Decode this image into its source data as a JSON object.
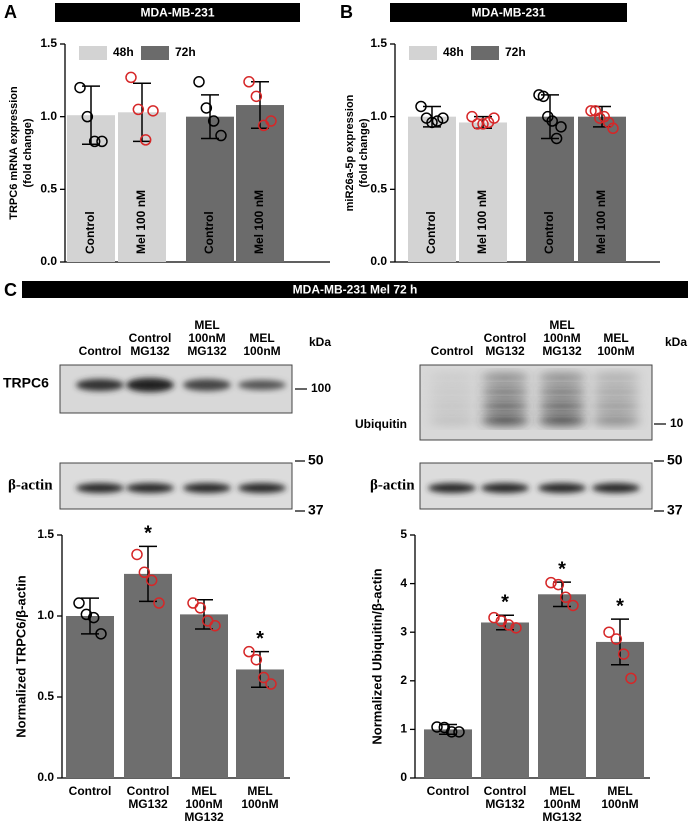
{
  "chart_data": [
    {
      "type": "bar",
      "panel_label": "A",
      "header": "MDA-MB-231",
      "ylabel": [
        "TRPC6 mRNA expression",
        "(fold change)"
      ],
      "categories": [
        "Control",
        "Mel 100 nM"
      ],
      "point_colors": [
        "#000000",
        "#d62728"
      ],
      "series": [
        {
          "name": "48h",
          "color": "#d3d3d3",
          "values": [
            1.01,
            1.03
          ],
          "errors": [
            0.2,
            0.2
          ],
          "points": [
            [
              1.2,
              1.0,
              0.83,
              0.83
            ],
            [
              1.27,
              1.05,
              0.84,
              1.04
            ]
          ]
        },
        {
          "name": "72h",
          "color": "#6b6b6b",
          "values": [
            1.0,
            1.08
          ],
          "errors": [
            0.15,
            0.16
          ],
          "points": [
            [
              1.24,
              1.06,
              0.97,
              0.87
            ],
            [
              1.24,
              1.14,
              0.94,
              0.97
            ]
          ]
        }
      ],
      "ylim": [
        0,
        1.5
      ],
      "yticks": [
        {
          "value": 0,
          "label": "0.0"
        },
        0.5,
        {
          "value": 1,
          "label": "1.0"
        },
        {
          "value": 1.5,
          "label": "1.5"
        }
      ]
    },
    {
      "type": "bar",
      "panel_label": "B",
      "header": "MDA-MB-231",
      "ylabel": [
        "miR26a-5p expression",
        "(fold change)"
      ],
      "categories": [
        "Control",
        "Mel 100 nM"
      ],
      "point_colors": [
        "#000000",
        "#d62728"
      ],
      "series": [
        {
          "name": "48h",
          "color": "#d3d3d3",
          "values": [
            1.0,
            0.96
          ],
          "errors": [
            0.07,
            0.04
          ],
          "points": [
            [
              1.07,
              0.99,
              0.96,
              0.97,
              0.99
            ],
            [
              1.0,
              0.95,
              0.95,
              0.96,
              0.99
            ]
          ]
        },
        {
          "name": "72h",
          "color": "#6b6b6b",
          "values": [
            1.0,
            1.0
          ],
          "errors": [
            0.15,
            0.07
          ],
          "points": [
            [
              1.15,
              1.14,
              1.0,
              0.97,
              0.85,
              0.93
            ],
            [
              1.04,
              1.04,
              0.99,
              1.0,
              0.96,
              0.92
            ]
          ]
        }
      ],
      "ylim": [
        0,
        1.5
      ],
      "yticks": [
        {
          "value": 0,
          "label": "0.0"
        },
        0.5,
        {
          "value": 1,
          "label": "1.0"
        },
        {
          "value": 1.5,
          "label": "1.5"
        }
      ]
    },
    {
      "type": "bar",
      "panel_label": "C",
      "header": "MDA-MB-231 Mel 72 h",
      "ylabel": "Normalized TRPC6/β-actin",
      "categories": [
        "Control",
        "Control\nMG132",
        "MEL\n100nM\nMG132",
        "MEL\n100nM"
      ],
      "color": "#6e6e6e",
      "point_colors": [
        "#000000",
        "#d62728",
        "#d62728",
        "#d62728"
      ],
      "values": [
        1.0,
        1.26,
        1.01,
        0.67
      ],
      "errors": [
        0.11,
        0.17,
        0.09,
        0.11
      ],
      "points": [
        [
          1.08,
          1.01,
          0.99,
          0.89
        ],
        [
          1.38,
          1.27,
          1.22,
          1.08
        ],
        [
          1.08,
          1.05,
          0.97,
          0.94
        ],
        [
          0.78,
          0.73,
          0.62,
          0.58
        ]
      ],
      "significance": [
        null,
        "*",
        null,
        "*"
      ],
      "ylim": [
        0,
        1.5
      ],
      "yticks": [
        {
          "value": 0,
          "label": "0.0"
        },
        0.5,
        {
          "value": 1,
          "label": "1.0"
        },
        {
          "value": 1.5,
          "label": "1.5"
        }
      ]
    },
    {
      "type": "bar",
      "ylabel": "Normalized Ubiquitin/β-actin",
      "categories": [
        "Control",
        "Control\nMG132",
        "MEL\n100nM\nMG132",
        "MEL\n100nM"
      ],
      "color": "#6e6e6e",
      "point_colors": [
        "#000000",
        "#d62728",
        "#d62728",
        "#d62728"
      ],
      "values": [
        1.0,
        3.2,
        3.78,
        2.8
      ],
      "errors": [
        0.1,
        0.15,
        0.25,
        0.47
      ],
      "points": [
        [
          1.05,
          1.04,
          0.95,
          0.95
        ],
        [
          3.3,
          3.23,
          3.15,
          3.09
        ],
        [
          4.02,
          3.98,
          3.72,
          3.55
        ],
        [
          3.0,
          2.86,
          2.55,
          2.05
        ]
      ],
      "significance": [
        null,
        "*",
        "*",
        "*"
      ],
      "ylim": [
        0,
        5
      ],
      "yticks": [
        0,
        1,
        2,
        3,
        4,
        5
      ]
    }
  ],
  "blots": {
    "left": {
      "lanes": [
        "Control",
        "Control\nMG132",
        "MEL\n100nM\nMG132",
        "MEL\n100nM"
      ],
      "kda": "kDa",
      "target": "TRPC6",
      "target_marker": "100",
      "actin": "β-actin",
      "marker_upper": "50",
      "marker_lower": "37"
    },
    "right": {
      "lanes": [
        "Control",
        "Control\nMG132",
        "MEL\n100nM\nMG132",
        "MEL\n100nM"
      ],
      "kda": "kDa",
      "target": "Ubiquitin",
      "target_marker": "10",
      "actin": "β-actin",
      "marker_upper": "50",
      "marker_lower": "37"
    }
  }
}
